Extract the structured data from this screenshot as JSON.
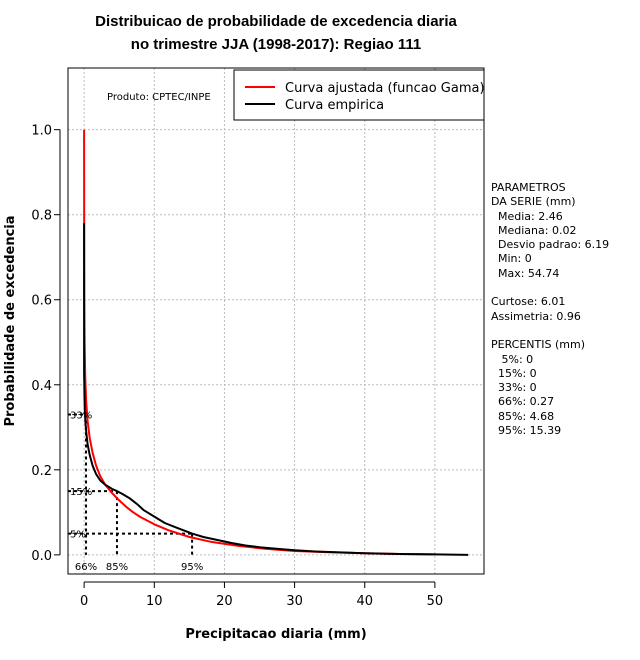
{
  "chart_data": {
    "type": "line",
    "title_line1": "Distribuicao de probabilidade de excedencia diaria",
    "title_line2": "no trimestre JJA (1998-2017): Regiao 111",
    "xlabel": "Precipitacao diaria (mm)",
    "ylabel": "Probabilidade de excedencia",
    "xlim": [
      -2.3,
      57.0
    ],
    "ylim": [
      -0.045,
      1.145
    ],
    "x_ticks": [
      0,
      10,
      20,
      30,
      40,
      50
    ],
    "x_tick_labels": [
      "0",
      "10",
      "20",
      "30",
      "40",
      "50"
    ],
    "y_ticks": [
      0.0,
      0.2,
      0.4,
      0.6,
      0.8,
      1.0
    ],
    "y_tick_labels": [
      "0.0",
      "0.2",
      "0.4",
      "0.6",
      "0.8",
      "1.0"
    ],
    "grid": true,
    "product_label": "Produto: CPTEC/INPE",
    "legend_position": "top-right",
    "series": [
      {
        "name": "Curva ajustada (funcao Gama)",
        "color": "#ff0000",
        "x": [
          0.0,
          0.01,
          0.03,
          0.07,
          0.15,
          0.3,
          0.5,
          0.8,
          1.2,
          1.7,
          2.3,
          3.0,
          4.0,
          5.0,
          6.0,
          7.0,
          8.0,
          10.0,
          12.0,
          15.0,
          18.0,
          22.0,
          26.0,
          30.0,
          35.0,
          40.0,
          45.0,
          50.0
        ],
        "y": [
          1.0,
          0.72,
          0.6,
          0.5,
          0.42,
          0.36,
          0.315,
          0.275,
          0.24,
          0.21,
          0.185,
          0.165,
          0.145,
          0.128,
          0.113,
          0.1,
          0.089,
          0.072,
          0.058,
          0.042,
          0.031,
          0.021,
          0.014,
          0.009,
          0.006,
          0.004,
          0.002,
          0.001
        ]
      },
      {
        "name": "Curva empirica",
        "color": "#000000",
        "x": [
          0.0,
          0.0,
          0.05,
          0.1,
          0.2,
          0.3,
          0.5,
          0.8,
          1.2,
          1.7,
          2.3,
          3.0,
          3.5,
          4.0,
          4.68,
          5.5,
          6.5,
          7.5,
          8.5,
          10.0,
          11.5,
          13.0,
          15.39,
          17.0,
          19.0,
          21.0,
          23.0,
          25.0,
          27.0,
          30.0,
          33.0,
          36.0,
          40.0,
          45.0,
          50.0,
          54.74
        ],
        "y": [
          0.78,
          0.43,
          0.37,
          0.34,
          0.31,
          0.29,
          0.26,
          0.235,
          0.21,
          0.19,
          0.175,
          0.165,
          0.16,
          0.155,
          0.15,
          0.143,
          0.133,
          0.12,
          0.105,
          0.09,
          0.075,
          0.065,
          0.05,
          0.042,
          0.035,
          0.028,
          0.022,
          0.018,
          0.015,
          0.011,
          0.008,
          0.006,
          0.004,
          0.002,
          0.001,
          0.0
        ]
      }
    ],
    "percentile_markers": [
      {
        "value": 0.27,
        "prob": 0.33,
        "y_label": "33%",
        "x_label": "66%"
      },
      {
        "value": 4.68,
        "prob": 0.15,
        "y_label": "15%",
        "x_label": "85%"
      },
      {
        "value": 15.39,
        "prob": 0.05,
        "y_label": "5%",
        "x_label": "95%"
      }
    ],
    "params_text": [
      "PARAMETROS",
      "DA SERIE (mm)",
      "  Media: 2.46",
      "  Mediana: 0.02",
      "  Desvio padrao: 6.19",
      "  Min: 0",
      "  Max: 54.74",
      "",
      "Curtose: 6.01",
      "Assimetria: 0.96",
      "",
      "PERCENTIS (mm)",
      "   5%: 0",
      "  15%: 0",
      "  33%: 0",
      "  66%: 0.27",
      "  85%: 4.68",
      "  95%: 15.39"
    ]
  }
}
